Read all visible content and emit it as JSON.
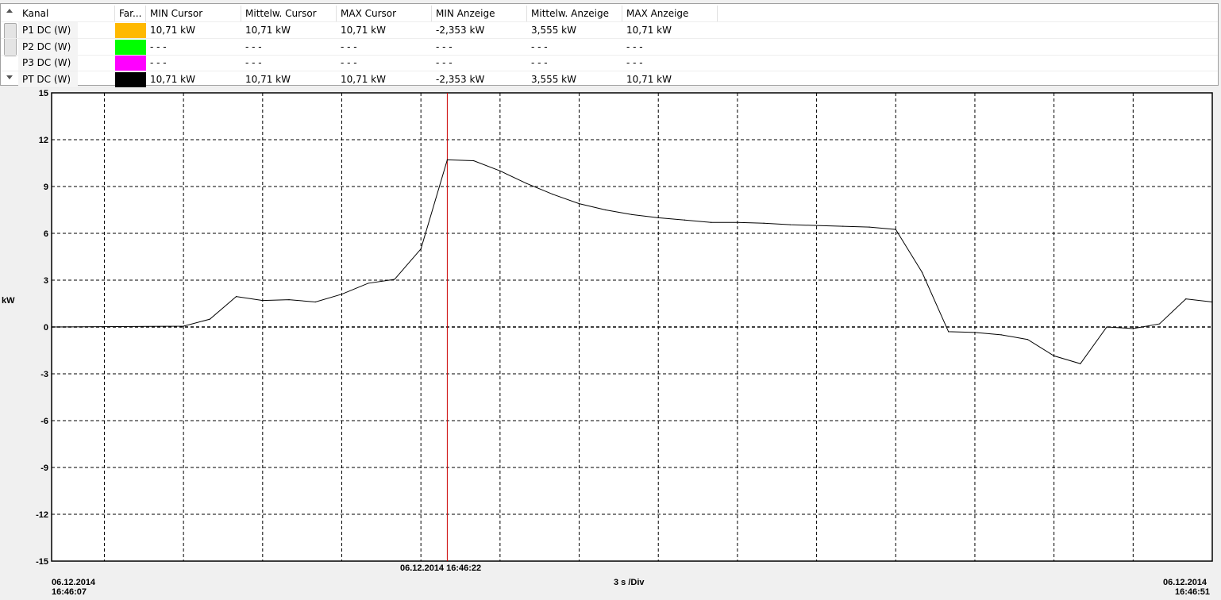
{
  "table": {
    "columns": [
      "Kanal",
      "Far...",
      "MIN Cursor",
      "Mittelw. Cursor",
      "MAX Cursor",
      "MIN Anzeige",
      "Mittelw. Anzeige",
      "MAX Anzeige"
    ],
    "rows": [
      {
        "kanal": "P1 DC (W)",
        "color": "#FFB900",
        "min_cursor": "10,71 kW",
        "mittel_cursor": "10,71 kW",
        "max_cursor": "10,71 kW",
        "min_anzeige": "-2,353 kW",
        "mittel_anzeige": "3,555 kW",
        "max_anzeige": "10,71 kW"
      },
      {
        "kanal": "P2 DC (W)",
        "color": "#00FF00",
        "min_cursor": "- - -",
        "mittel_cursor": "- - -",
        "max_cursor": "- - -",
        "min_anzeige": "- - -",
        "mittel_anzeige": "- - -",
        "max_anzeige": "- - -"
      },
      {
        "kanal": "P3 DC (W)",
        "color": "#FF00FF",
        "min_cursor": "- - -",
        "mittel_cursor": "- - -",
        "max_cursor": "- - -",
        "min_anzeige": "- - -",
        "mittel_anzeige": "- - -",
        "max_anzeige": "- - -"
      },
      {
        "kanal": "PT DC (W)",
        "color": "#000000",
        "min_cursor": "10,71 kW",
        "mittel_cursor": "10,71 kW",
        "max_cursor": "10,71 kW",
        "min_anzeige": "-2,353 kW",
        "mittel_anzeige": "3,555 kW",
        "max_anzeige": "10,71 kW"
      }
    ]
  },
  "chart_data": {
    "type": "line",
    "ylabel": "kW",
    "ylim": [
      -15,
      15
    ],
    "yticks": [
      "15",
      "12",
      "9",
      "6",
      "3",
      "0",
      "-3",
      "-6",
      "-9",
      "-12",
      "-15"
    ],
    "x_start": {
      "date": "06.12.2014",
      "time": "16:46:07"
    },
    "x_end": {
      "date": "06.12.2014",
      "time": "16:46:51"
    },
    "x_division": "3 s /Div",
    "cursor": {
      "label": "06.12.2014 16:46:22",
      "time": "16:46:22",
      "color": "#CC0000"
    },
    "grid": true,
    "series": [
      {
        "color": "#000000",
        "x": [
          "16:46:07",
          "16:46:12",
          "16:46:13",
          "16:46:14",
          "16:46:15",
          "16:46:16",
          "16:46:17",
          "16:46:18",
          "16:46:19",
          "16:46:20",
          "16:46:21",
          "16:46:22",
          "16:46:23",
          "16:46:24",
          "16:46:25",
          "16:46:26",
          "16:46:27",
          "16:46:28",
          "16:46:29",
          "16:46:30",
          "16:46:31",
          "16:46:32",
          "16:46:33",
          "16:46:34",
          "16:46:35",
          "16:46:36",
          "16:46:37",
          "16:46:38",
          "16:46:39",
          "16:46:40",
          "16:46:41",
          "16:46:42",
          "16:46:43",
          "16:46:44",
          "16:46:45",
          "16:46:46",
          "16:46:47",
          "16:46:48",
          "16:46:49",
          "16:46:50",
          "16:46:51"
        ],
        "y": [
          0,
          0.05,
          0.5,
          1.95,
          1.7,
          1.75,
          1.6,
          2.1,
          2.8,
          3.05,
          5.0,
          10.71,
          10.65,
          10.0,
          9.2,
          8.5,
          7.9,
          7.5,
          7.2,
          7.0,
          6.85,
          6.7,
          6.7,
          6.65,
          6.55,
          6.5,
          6.45,
          6.4,
          6.25,
          3.5,
          -0.3,
          -0.35,
          -0.5,
          -0.8,
          -1.85,
          -2.353,
          0,
          -0.1,
          0.2,
          1.8,
          1.6
        ]
      }
    ]
  }
}
